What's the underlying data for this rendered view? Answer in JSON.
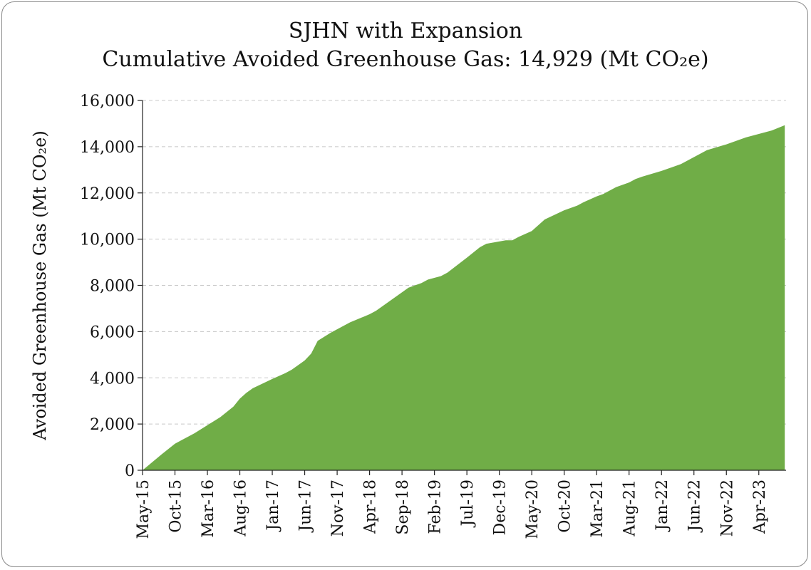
{
  "chart_data": {
    "type": "area",
    "title": "SJHN with Expansion",
    "subtitle": "Cumulative Avoided Greenhouse Gas: 14,929 (Mt CO₂e)",
    "xlabel": "",
    "ylabel": "Avoided Greenhouse Gas (Mt CO₂e)",
    "ylim": [
      0,
      16000
    ],
    "yticks": [
      "0",
      "2,000",
      "4,000",
      "6,000",
      "8,000",
      "10,000",
      "12,000",
      "14,000",
      "16,000"
    ],
    "ytick_values": [
      0,
      2000,
      4000,
      6000,
      8000,
      10000,
      12000,
      14000,
      16000
    ],
    "xtick_labels": [
      "May-15",
      "Oct-15",
      "Mar-16",
      "Aug-16",
      "Jan-17",
      "Jun-17",
      "Nov-17",
      "Apr-18",
      "Sep-18",
      "Feb-19",
      "Jul-19",
      "Dec-19",
      "May-20",
      "Oct-20",
      "Mar-21",
      "Aug-21",
      "Jan-22",
      "Jun-22",
      "Nov-22",
      "Apr-23"
    ],
    "grid": "horizontal-dashed",
    "fill_color": "#70ad47",
    "series": [
      {
        "points": [
          [
            "May-15",
            0
          ],
          [
            "Aug-15",
            700
          ],
          [
            "Oct-15",
            1150
          ],
          [
            "Dec-15",
            1450
          ],
          [
            "Jan-16",
            1600
          ],
          [
            "Mar-16",
            1950
          ],
          [
            "May-16",
            2300
          ],
          [
            "Jul-16",
            2750
          ],
          [
            "Aug-16",
            3100
          ],
          [
            "Sep-16",
            3350
          ],
          [
            "Oct-16",
            3550
          ],
          [
            "Jan-17",
            3950
          ],
          [
            "Mar-17",
            4200
          ],
          [
            "Apr-17",
            4350
          ],
          [
            "Jun-17",
            4750
          ],
          [
            "Jul-17",
            5050
          ],
          [
            "Aug-17",
            5600
          ],
          [
            "Oct-17",
            5950
          ],
          [
            "Nov-17",
            6100
          ],
          [
            "Jan-18",
            6400
          ],
          [
            "Apr-18",
            6750
          ],
          [
            "May-18",
            6900
          ],
          [
            "Sep-18",
            7700
          ],
          [
            "Oct-18",
            7900
          ],
          [
            "Dec-18",
            8100
          ],
          [
            "Jan-19",
            8250
          ],
          [
            "Mar-19",
            8400
          ],
          [
            "Apr-19",
            8550
          ],
          [
            "Jul-19",
            9200
          ],
          [
            "Sep-19",
            9650
          ],
          [
            "Oct-19",
            9800
          ],
          [
            "Dec-19",
            9900
          ],
          [
            "Jan-20",
            9950
          ],
          [
            "Feb-20",
            9950
          ],
          [
            "Mar-20",
            10100
          ],
          [
            "May-20",
            10350
          ],
          [
            "Jul-20",
            10850
          ],
          [
            "Oct-20",
            11250
          ],
          [
            "Dec-20",
            11450
          ],
          [
            "Jan-21",
            11600
          ],
          [
            "Mar-21",
            11850
          ],
          [
            "Apr-21",
            11950
          ],
          [
            "Jun-21",
            12250
          ],
          [
            "Aug-21",
            12450
          ],
          [
            "Sep-21",
            12600
          ],
          [
            "Oct-21",
            12700
          ],
          [
            "Jan-22",
            12950
          ],
          [
            "Mar-22",
            13150
          ],
          [
            "Apr-22",
            13250
          ],
          [
            "Jun-22",
            13550
          ],
          [
            "Aug-22",
            13850
          ],
          [
            "Nov-22",
            14100
          ],
          [
            "Feb-23",
            14400
          ],
          [
            "Apr-23",
            14550
          ],
          [
            "Jun-23",
            14700
          ],
          [
            "Aug-23",
            14929
          ]
        ]
      }
    ]
  }
}
